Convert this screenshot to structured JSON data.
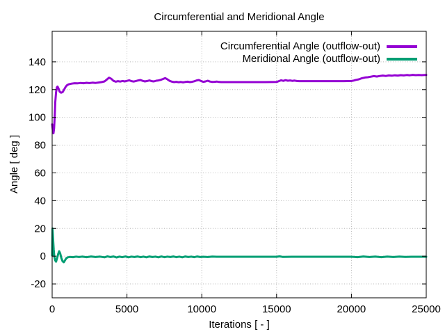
{
  "chart_data": {
    "type": "line",
    "title": "Circumferential and Meridional Angle",
    "xlabel": "Iterations [ - ]",
    "ylabel": "Angle [ deg ]",
    "xlim": [
      0,
      25000
    ],
    "ylim": [
      -30,
      162
    ],
    "xticks": [
      0,
      5000,
      10000,
      15000,
      20000,
      25000
    ],
    "yticks": [
      -20,
      0,
      20,
      40,
      60,
      80,
      100,
      120,
      140
    ],
    "grid": true,
    "grid_style": "dotted",
    "legend_position": "top-right-inside",
    "series": [
      {
        "name": "Circumferential Angle (outflow-out)",
        "color": "#9400d3",
        "points": [
          [
            0,
            95
          ],
          [
            40,
            91
          ],
          [
            90,
            88.5
          ],
          [
            130,
            92
          ],
          [
            170,
            101
          ],
          [
            210,
            111
          ],
          [
            260,
            118
          ],
          [
            310,
            121.5
          ],
          [
            360,
            122.2
          ],
          [
            420,
            121
          ],
          [
            500,
            118.5
          ],
          [
            600,
            117.8
          ],
          [
            700,
            118.2
          ],
          [
            800,
            120
          ],
          [
            900,
            122
          ],
          [
            1000,
            123.2
          ],
          [
            1100,
            123.8
          ],
          [
            1300,
            124.3
          ],
          [
            1500,
            124.6
          ],
          [
            1700,
            124.5
          ],
          [
            1900,
            124.8
          ],
          [
            2100,
            124.6
          ],
          [
            2300,
            124.9
          ],
          [
            2500,
            124.7
          ],
          [
            2700,
            125
          ],
          [
            2900,
            124.8
          ],
          [
            3100,
            125.1
          ],
          [
            3300,
            125.4
          ],
          [
            3500,
            125.9
          ],
          [
            3650,
            127.2
          ],
          [
            3800,
            128.6
          ],
          [
            3950,
            127.8
          ],
          [
            4100,
            126.3
          ],
          [
            4250,
            125.7
          ],
          [
            4400,
            126.1
          ],
          [
            4550,
            125.8
          ],
          [
            4700,
            126.2
          ],
          [
            4850,
            125.9
          ],
          [
            5000,
            126.3
          ],
          [
            5150,
            126.7
          ],
          [
            5300,
            126.1
          ],
          [
            5450,
            125.8
          ],
          [
            5600,
            126.2
          ],
          [
            5750,
            126.6
          ],
          [
            5900,
            126.9
          ],
          [
            6050,
            126.3
          ],
          [
            6200,
            125.9
          ],
          [
            6350,
            126.2
          ],
          [
            6500,
            126.6
          ],
          [
            6650,
            126.1
          ],
          [
            6800,
            125.9
          ],
          [
            6950,
            126.4
          ],
          [
            7100,
            126.6
          ],
          [
            7250,
            127
          ],
          [
            7400,
            127.6
          ],
          [
            7550,
            128.3
          ],
          [
            7700,
            127.4
          ],
          [
            7850,
            126.3
          ],
          [
            8000,
            125.7
          ],
          [
            8150,
            125.4
          ],
          [
            8300,
            125.6
          ],
          [
            8450,
            125.3
          ],
          [
            8600,
            125.5
          ],
          [
            8750,
            125.2
          ],
          [
            8900,
            125.5
          ],
          [
            9050,
            125.7
          ],
          [
            9200,
            125.4
          ],
          [
            9350,
            125.6
          ],
          [
            9500,
            126
          ],
          [
            9650,
            126.6
          ],
          [
            9800,
            126.9
          ],
          [
            9950,
            126.2
          ],
          [
            10100,
            125.6
          ],
          [
            10250,
            125.9
          ],
          [
            10400,
            126.4
          ],
          [
            10550,
            125.8
          ],
          [
            10700,
            125.5
          ],
          [
            10850,
            125.6
          ],
          [
            11000,
            125.8
          ],
          [
            11150,
            125.5
          ],
          [
            11300,
            125.4
          ],
          [
            12000,
            125.4
          ],
          [
            13000,
            125.4
          ],
          [
            14000,
            125.4
          ],
          [
            15000,
            125.5
          ],
          [
            15150,
            126.1
          ],
          [
            15300,
            126.7
          ],
          [
            15450,
            126.3
          ],
          [
            15600,
            126.8
          ],
          [
            15750,
            126.4
          ],
          [
            15900,
            126.6
          ],
          [
            16050,
            126.3
          ],
          [
            16200,
            126.5
          ],
          [
            16350,
            126.2
          ],
          [
            16500,
            126.1
          ],
          [
            16800,
            126.1
          ],
          [
            17500,
            126.1
          ],
          [
            18500,
            126.1
          ],
          [
            19500,
            126.1
          ],
          [
            20000,
            126.2
          ],
          [
            20150,
            126.5
          ],
          [
            20300,
            127
          ],
          [
            20500,
            127.4
          ],
          [
            20700,
            128.2
          ],
          [
            20900,
            128.7
          ],
          [
            21100,
            128.9
          ],
          [
            21300,
            129.3
          ],
          [
            21500,
            129.7
          ],
          [
            21700,
            129.4
          ],
          [
            21900,
            129.8
          ],
          [
            22100,
            130.1
          ],
          [
            22300,
            129.8
          ],
          [
            22500,
            130.2
          ],
          [
            22700,
            130
          ],
          [
            22900,
            130.3
          ],
          [
            23100,
            130.1
          ],
          [
            23300,
            130.4
          ],
          [
            23500,
            130.2
          ],
          [
            23700,
            130.5
          ],
          [
            23900,
            130.3
          ],
          [
            24100,
            130.6
          ],
          [
            24300,
            130.4
          ],
          [
            24500,
            130.5
          ],
          [
            24700,
            130.4
          ],
          [
            24900,
            130.5
          ],
          [
            25000,
            130.5
          ]
        ]
      },
      {
        "name": "Meridional Angle (outflow-out)",
        "color": "#009e73",
        "points": [
          [
            0,
            0.5
          ],
          [
            25,
            20
          ],
          [
            60,
            13
          ],
          [
            100,
            5
          ],
          [
            150,
            -0.5
          ],
          [
            200,
            -3
          ],
          [
            260,
            -4
          ],
          [
            330,
            -1.5
          ],
          [
            400,
            1.5
          ],
          [
            470,
            3.6
          ],
          [
            540,
            2
          ],
          [
            620,
            -1.5
          ],
          [
            700,
            -3.8
          ],
          [
            780,
            -4.4
          ],
          [
            860,
            -3
          ],
          [
            950,
            -1.5
          ],
          [
            1050,
            -0.8
          ],
          [
            1200,
            -0.5
          ],
          [
            1400,
            -0.7
          ],
          [
            1600,
            -0.3
          ],
          [
            1800,
            -0.6
          ],
          [
            2000,
            -0.3
          ],
          [
            2300,
            -0.7
          ],
          [
            2600,
            -0.2
          ],
          [
            2900,
            -0.6
          ],
          [
            3200,
            -0.3
          ],
          [
            3500,
            -0.8
          ],
          [
            3700,
            -0.1
          ],
          [
            3900,
            -0.6
          ],
          [
            4100,
            -0.2
          ],
          [
            4300,
            -0.9
          ],
          [
            4500,
            -0.3
          ],
          [
            4700,
            -0.7
          ],
          [
            4900,
            -0.2
          ],
          [
            5100,
            -0.8
          ],
          [
            5300,
            -0.3
          ],
          [
            5500,
            -0.6
          ],
          [
            5700,
            -0.2
          ],
          [
            5900,
            -0.7
          ],
          [
            6100,
            -0.3
          ],
          [
            6300,
            -0.8
          ],
          [
            6500,
            -0.2
          ],
          [
            6700,
            -0.6
          ],
          [
            6900,
            -0.3
          ],
          [
            7100,
            -0.8
          ],
          [
            7300,
            -0.2
          ],
          [
            7500,
            -0.7
          ],
          [
            7700,
            -0.3
          ],
          [
            7900,
            -0.6
          ],
          [
            8100,
            -0.2
          ],
          [
            8300,
            -0.7
          ],
          [
            8500,
            -0.3
          ],
          [
            8700,
            -0.8
          ],
          [
            8900,
            -0.2
          ],
          [
            9100,
            -0.6
          ],
          [
            9300,
            -0.3
          ],
          [
            9500,
            -0.7
          ],
          [
            9700,
            -0.2
          ],
          [
            9900,
            -0.6
          ],
          [
            10100,
            -0.4
          ],
          [
            10400,
            -0.6
          ],
          [
            10700,
            -0.3
          ],
          [
            11000,
            -0.4
          ],
          [
            12000,
            -0.4
          ],
          [
            13000,
            -0.4
          ],
          [
            14000,
            -0.4
          ],
          [
            15000,
            -0.4
          ],
          [
            15200,
            -0.1
          ],
          [
            15400,
            -0.5
          ],
          [
            16000,
            -0.4
          ],
          [
            17000,
            -0.4
          ],
          [
            18000,
            -0.4
          ],
          [
            19000,
            -0.4
          ],
          [
            20000,
            -0.4
          ],
          [
            20400,
            -0.7
          ],
          [
            20800,
            -0.2
          ],
          [
            21200,
            -0.6
          ],
          [
            21600,
            -0.3
          ],
          [
            22000,
            -0.7
          ],
          [
            22400,
            -0.3
          ],
          [
            22800,
            -0.6
          ],
          [
            23200,
            -0.3
          ],
          [
            23600,
            -0.5
          ],
          [
            24000,
            -0.4
          ],
          [
            24500,
            -0.4
          ],
          [
            25000,
            -0.4
          ]
        ]
      }
    ]
  },
  "colors": {
    "background": "#ffffff",
    "axis": "#000000",
    "grid": "#b8b8b8",
    "text": "#000000"
  }
}
